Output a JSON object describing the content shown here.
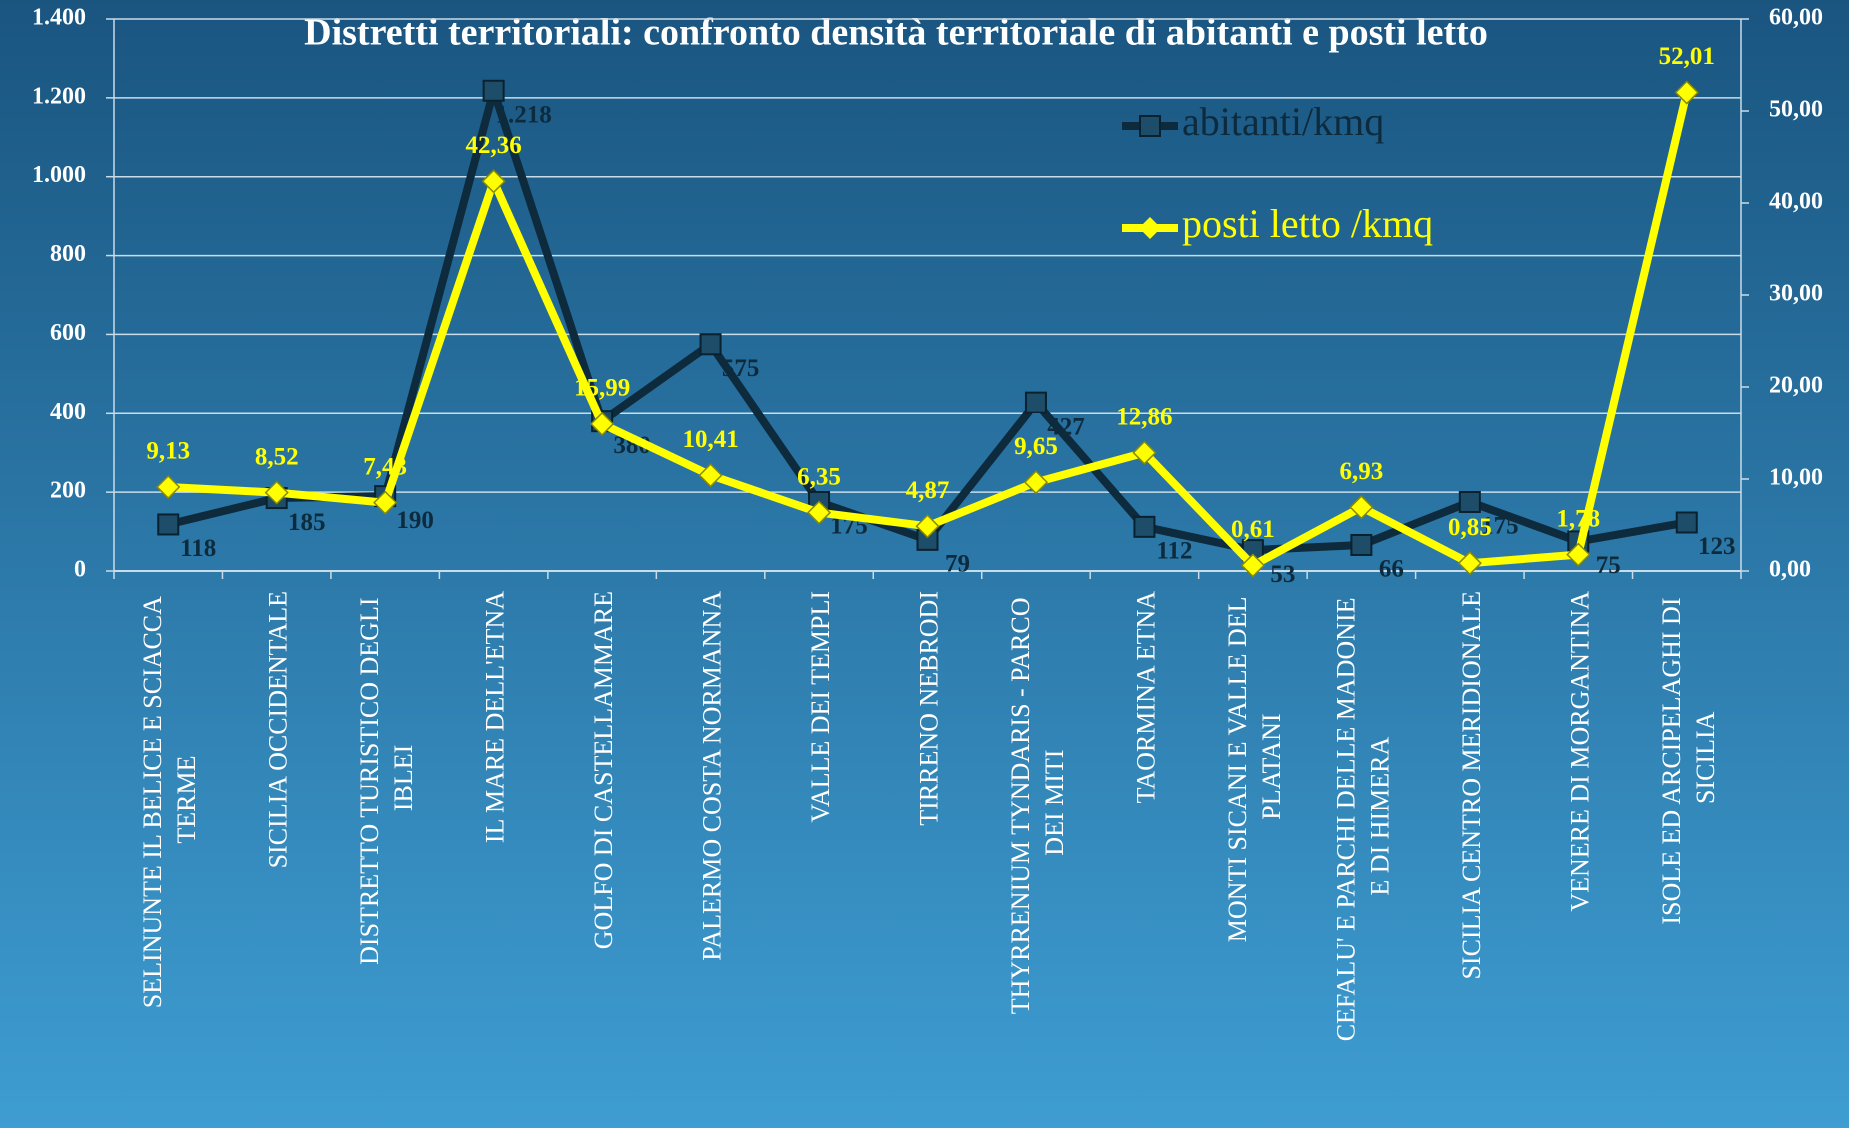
{
  "chart_data": {
    "type": "line",
    "title": "Distretti territoriali: confronto densità territoriale di abitanti e posti letto",
    "categories": [
      "SELINUNTE IL BELICE E SCIACCA TERME",
      "SICILIA OCCIDENTALE",
      "DISTRETTO TURISTICO DEGLI IBLEI",
      "IL MARE DELL'ETNA",
      "GOLFO DI CASTELLAMMARE",
      "PALERMO COSTA NORMANNA",
      "VALLE DEI TEMPLI",
      "TIRRENO NEBRODI",
      "THYRRENIUM TYNDARIS - PARCO DEI MITI",
      "TAORMINA ETNA",
      "MONTI SICANI E VALLE DEL PLATANI",
      "CEFALU' E PARCHI DELLE MADONIE E DI HIMERA",
      "SICILIA CENTRO MERIDIONALE",
      "VENERE DI MORGANTINA",
      "ISOLE ED ARCIPELAGHI DI SICILIA"
    ],
    "series": [
      {
        "name": "abitanti/kmq",
        "color": "#0d2b3c",
        "marker_color": "#1d4d68",
        "axis": "y",
        "values": [
          118,
          185,
          190,
          1218,
          380,
          575,
          175,
          79,
          427,
          112,
          53,
          66,
          175,
          75,
          123
        ],
        "value_labels": [
          "118",
          "185",
          "190",
          "1.218",
          "380",
          "575",
          "175",
          "79",
          "427",
          "112",
          "53",
          "66",
          "175",
          "75",
          "123"
        ]
      },
      {
        "name": "posti letto /kmq",
        "color": "#ffff00",
        "marker_color": "#ffff00",
        "axis": "y2",
        "values": [
          9.13,
          8.52,
          7.43,
          42.36,
          15.99,
          10.41,
          6.35,
          4.87,
          9.65,
          12.86,
          0.61,
          6.93,
          0.85,
          1.78,
          52.01
        ],
        "value_labels": [
          "9,13",
          "8,52",
          "7,43",
          "42,36",
          "15,99",
          "10,41",
          "6,35",
          "4,87",
          "9,65",
          "12,86",
          "0,61",
          "6,93",
          "0,85",
          "1,78",
          "52,01"
        ]
      }
    ],
    "ylim": [
      0,
      1400
    ],
    "yticks": [
      0,
      200,
      400,
      600,
      800,
      {
        "value": 1000,
        "label": "1.000"
      },
      {
        "value": 1200,
        "label": "1.200"
      },
      {
        "value": 1400,
        "label": "1.400"
      }
    ],
    "y2lim": [
      0,
      60
    ],
    "y2ticks": [
      {
        "value": 0,
        "label": "0,00"
      },
      {
        "value": 10,
        "label": "10,00"
      },
      {
        "value": 20,
        "label": "20,00"
      },
      {
        "value": 30,
        "label": "30,00"
      },
      {
        "value": 40,
        "label": "40,00"
      },
      {
        "value": 50,
        "label": "50,00"
      },
      {
        "value": 60,
        "label": "60,00"
      }
    ],
    "grid": true
  }
}
